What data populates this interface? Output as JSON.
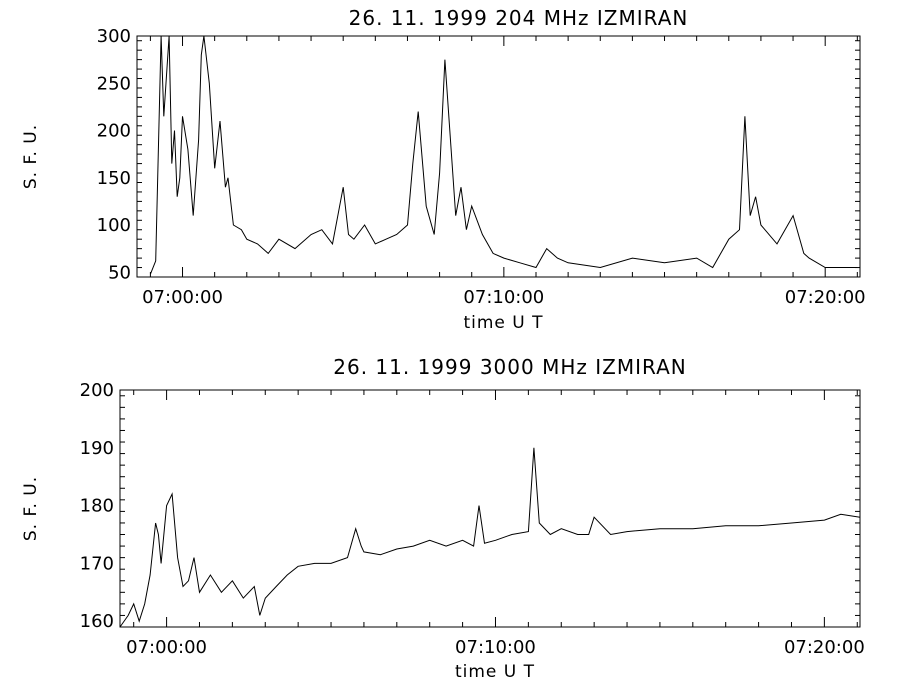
{
  "chart_data": [
    {
      "type": "line",
      "title": "26.  11.  1999    204  MHz    IZMIRAN",
      "xlabel": "time   U T",
      "ylabel": "S. F. U.",
      "x_tick_labels": [
        "07:00:00",
        "07:10:00",
        "07:20:00"
      ],
      "y_ticks": [
        50,
        100,
        150,
        200,
        250,
        300
      ],
      "xlim": [
        "06:58:35",
        "07:21:05"
      ],
      "ylim": [
        45,
        300
      ],
      "grid": false,
      "series": [
        {
          "x": [
            "06:59:00",
            "06:59:10",
            "06:59:20",
            "06:59:25",
            "06:59:35",
            "06:59:40",
            "06:59:45",
            "06:59:50",
            "06:59:55",
            "07:00:00",
            "07:00:10",
            "07:00:20",
            "07:00:30",
            "07:00:35",
            "07:00:40",
            "07:00:50",
            "07:01:00",
            "07:01:10",
            "07:01:20",
            "07:01:25",
            "07:01:35",
            "07:01:50",
            "07:02:00",
            "07:02:20",
            "07:02:40",
            "07:03:00",
            "07:03:30",
            "07:04:00",
            "07:04:20",
            "07:04:40",
            "07:05:00",
            "07:05:10",
            "07:05:20",
            "07:05:40",
            "07:06:00",
            "07:06:20",
            "07:06:40",
            "07:07:00",
            "07:07:10",
            "07:07:20",
            "07:07:35",
            "07:07:50",
            "07:08:00",
            "07:08:10",
            "07:08:30",
            "07:08:40",
            "07:08:50",
            "07:09:00",
            "07:09:20",
            "07:09:40",
            "07:10:00",
            "07:10:30",
            "07:11:00",
            "07:11:20",
            "07:11:40",
            "07:12:00",
            "07:13:00",
            "07:14:00",
            "07:15:00",
            "07:16:00",
            "07:16:30",
            "07:17:00",
            "07:17:20",
            "07:17:30",
            "07:17:40",
            "07:17:50",
            "07:18:00",
            "07:18:30",
            "07:19:00",
            "07:19:20",
            "07:19:30",
            "07:20:00",
            "07:20:30",
            "07:21:00"
          ],
          "y": [
            48,
            62,
            300,
            215,
            300,
            165,
            200,
            130,
            150,
            215,
            180,
            110,
            190,
            280,
            300,
            250,
            160,
            210,
            140,
            150,
            100,
            95,
            85,
            80,
            70,
            85,
            75,
            90,
            95,
            80,
            140,
            90,
            85,
            100,
            80,
            85,
            90,
            100,
            165,
            220,
            120,
            90,
            155,
            275,
            110,
            140,
            95,
            120,
            90,
            70,
            65,
            60,
            55,
            75,
            65,
            60,
            55,
            65,
            60,
            65,
            55,
            85,
            95,
            215,
            110,
            130,
            100,
            80,
            110,
            70,
            65,
            55,
            55,
            55
          ]
        }
      ]
    },
    {
      "type": "line",
      "title": "26.  11.  1999    3000  MHz    IZMIRAN",
      "xlabel": "time   U T",
      "ylabel": "S. F. U.",
      "x_tick_labels": [
        "07:00:00",
        "07:10:00",
        "07:20:00"
      ],
      "y_ticks": [
        160,
        170,
        180,
        190,
        200
      ],
      "xlim": [
        "06:58:35",
        "07:21:05"
      ],
      "ylim": [
        159,
        200
      ],
      "grid": false,
      "series": [
        {
          "x": [
            "06:58:35",
            "06:58:50",
            "06:59:00",
            "06:59:10",
            "06:59:20",
            "06:59:30",
            "06:59:40",
            "06:59:45",
            "06:59:50",
            "07:00:00",
            "07:00:10",
            "07:00:20",
            "07:00:30",
            "07:00:40",
            "07:00:50",
            "07:01:00",
            "07:01:20",
            "07:01:40",
            "07:02:00",
            "07:02:20",
            "07:02:40",
            "07:02:50",
            "07:03:00",
            "07:03:20",
            "07:03:40",
            "07:04:00",
            "07:04:30",
            "07:05:00",
            "07:05:30",
            "07:05:45",
            "07:05:55",
            "07:06:00",
            "07:06:30",
            "07:07:00",
            "07:07:30",
            "07:08:00",
            "07:08:30",
            "07:09:00",
            "07:09:20",
            "07:09:30",
            "07:09:40",
            "07:10:00",
            "07:10:30",
            "07:11:00",
            "07:11:10",
            "07:11:20",
            "07:11:40",
            "07:12:00",
            "07:12:30",
            "07:12:50",
            "07:13:00",
            "07:13:30",
            "07:14:00",
            "07:15:00",
            "07:16:00",
            "07:17:00",
            "07:18:00",
            "07:19:00",
            "07:20:00",
            "07:20:30",
            "07:21:05"
          ],
          "y": [
            159,
            161,
            163,
            160,
            163,
            168,
            177,
            175,
            170,
            180,
            182,
            171,
            166,
            167,
            171,
            165,
            168,
            165,
            167,
            164,
            166,
            161,
            164,
            166,
            168,
            169.5,
            170,
            170,
            171,
            176,
            173,
            172,
            171.5,
            172.5,
            173,
            174,
            173,
            174,
            173,
            180,
            173.5,
            174,
            175,
            175.5,
            190,
            177,
            175,
            176,
            175,
            175,
            178,
            175,
            175.5,
            176,
            176,
            176.5,
            176.5,
            177,
            177.5,
            178.5,
            178
          ]
        }
      ]
    }
  ]
}
